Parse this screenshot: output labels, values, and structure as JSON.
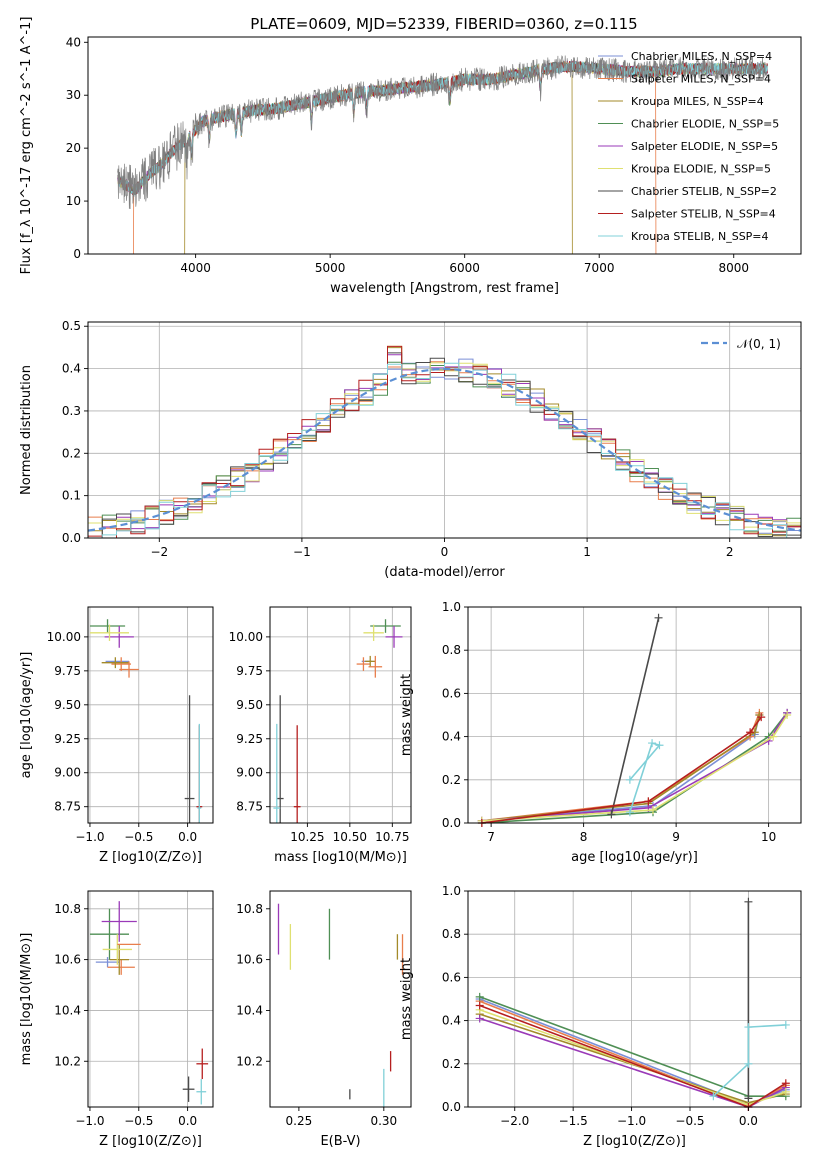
{
  "figure_title": "PLATE=0609, MJD=52339, FIBERID=0360, z=0.115",
  "colors": {
    "Chabrier MILES": "#7b8fd6",
    "Salpeter MILES": "#e87e4c",
    "Kroupa MILES": "#a38a2a",
    "Chabrier ELODIE": "#4f8f55",
    "Salpeter ELODIE": "#9a3ab8",
    "Kroupa ELODIE": "#dfe071",
    "Chabrier STELIB": "#4a4a4a",
    "Salpeter STELIB": "#b51f1f",
    "Kroupa STELIB": "#80d0d8",
    "normal": "#5b8fd4",
    "spectrum": "#7f7f7f"
  },
  "chart_data": [
    {
      "id": "spectrum",
      "type": "line",
      "title": "PLATE=0609, MJD=52339, FIBERID=0360, z=0.115",
      "xlabel": "wavelength [Angstrom, rest frame]",
      "ylabel": "Flux [f_λ 10^-17 erg cm^-2 s^-1 A^-1]",
      "xlim": [
        3200,
        8500
      ],
      "ylim": [
        0,
        41
      ],
      "xticks": [
        "4000",
        "5000",
        "6000",
        "7000",
        "8000"
      ],
      "yticks": [
        "0",
        "10",
        "20",
        "30",
        "40"
      ],
      "grid": false,
      "legend_position": "upper-right",
      "legend": [
        "Chabrier MILES, N_SSP=4",
        "Salpeter MILES, N_SSP=4",
        "Kroupa MILES, N_SSP=4",
        "Chabrier ELODIE, N_SSP=5",
        "Salpeter ELODIE, N_SSP=5",
        "Kroupa ELODIE, N_SSP=5",
        "Chabrier STELIB, N_SSP=2",
        "Salpeter STELIB, N_SSP=4",
        "Kroupa STELIB, N_SSP=4"
      ],
      "continuum": [
        [
          3420,
          14
        ],
        [
          3550,
          12
        ],
        [
          3650,
          15
        ],
        [
          3750,
          17
        ],
        [
          3850,
          20
        ],
        [
          3950,
          22
        ],
        [
          4050,
          25
        ],
        [
          4200,
          26
        ],
        [
          4400,
          27
        ],
        [
          4600,
          27.5
        ],
        [
          4800,
          28.5
        ],
        [
          5000,
          29.5
        ],
        [
          5200,
          30.5
        ],
        [
          5400,
          31
        ],
        [
          5600,
          31.5
        ],
        [
          5800,
          32
        ],
        [
          6000,
          33
        ],
        [
          6200,
          33
        ],
        [
          6400,
          34
        ],
        [
          6600,
          35
        ],
        [
          6800,
          35.5
        ],
        [
          7000,
          35
        ],
        [
          7200,
          34.5
        ],
        [
          7400,
          34.5
        ],
        [
          7600,
          35
        ],
        [
          7800,
          35
        ],
        [
          8000,
          35
        ],
        [
          8250,
          35
        ]
      ],
      "spectrum_range": [
        3420,
        8250
      ],
      "model_cutoffs": {
        "Kroupa MILES": [
          3920,
          6800
        ],
        "Salpeter MILES": [
          3540,
          7420
        ]
      }
    },
    {
      "id": "residuals",
      "type": "histogram",
      "xlabel": "(data-model)/error",
      "ylabel": "Normed distribution",
      "xlim": [
        -2.5,
        2.5
      ],
      "ylim": [
        0,
        0.51
      ],
      "xticks": [
        "−2",
        "−1",
        "0",
        "1",
        "2"
      ],
      "yticks": [
        "0.0",
        "0.1",
        "0.2",
        "0.3",
        "0.4",
        "0.5"
      ],
      "grid": true,
      "legend_position": "upper-right",
      "legend": [
        "𝒩(0, 1)"
      ],
      "bin_width": 0.1
    },
    {
      "id": "age_vs_Z",
      "type": "errorbar",
      "xlabel": "Z [log10(Z/Z⊙)]",
      "ylabel": "age [log10(age/yr)]",
      "xlim": [
        -1.02,
        0.26
      ],
      "ylim": [
        8.63,
        10.22
      ],
      "xticks": [
        "−1.0",
        "−0.5",
        "0.0"
      ],
      "xtick_values": [
        -1.0,
        -0.5,
        0.0
      ],
      "yticks": [
        "8.75",
        "9.00",
        "9.25",
        "9.50",
        "9.75",
        "10.00"
      ],
      "ytick_values": [
        8.75,
        9.0,
        9.25,
        9.5,
        9.75,
        10.0
      ],
      "grid": true,
      "points": [
        {
          "s": "Chabrier MILES",
          "x": -0.72,
          "y": 9.82,
          "xe": 0.12,
          "ye": 0.0
        },
        {
          "s": "Salpeter MILES",
          "x": -0.68,
          "y": 9.8,
          "xe": 0.1,
          "ye": 0.05
        },
        {
          "s": "Kroupa MILES",
          "x": -0.74,
          "y": 9.81,
          "xe": 0.14,
          "ye": 0.04
        },
        {
          "s": "Chabrier ELODIE",
          "x": -0.82,
          "y": 10.08,
          "xe": 0.18,
          "ye": 0.05
        },
        {
          "s": "Salpeter ELODIE",
          "x": -0.7,
          "y": 10.0,
          "xe": 0.15,
          "ye": 0.08
        },
        {
          "s": "Kroupa ELODIE",
          "x": -0.8,
          "y": 10.03,
          "xe": 0.2,
          "ye": 0.06
        },
        {
          "s": "Chabrier STELIB",
          "x": 0.02,
          "y": 8.81,
          "xe": 0.05,
          "ye": 0.76
        },
        {
          "s": "Salpeter STELIB",
          "x": 0.12,
          "y": 8.75,
          "xe": 0.03,
          "ye": 0.6
        },
        {
          "s": "Kroupa STELIB",
          "x": 0.12,
          "y": 8.74,
          "xe": 0.02,
          "ye": 0.62
        },
        {
          "s": "Salpeter MILES",
          "x": -0.6,
          "y": 9.76,
          "xe": 0.1,
          "ye": 0.06
        }
      ]
    },
    {
      "id": "age_vs_mass",
      "type": "errorbar",
      "xlabel": "mass [log10(M/M⊙)]",
      "ylabel": "",
      "xlim": [
        10.03,
        10.86
      ],
      "ylim": [
        8.63,
        10.22
      ],
      "xticks": [
        "10.25",
        "10.50",
        "10.75"
      ],
      "xtick_values": [
        10.25,
        10.5,
        10.75
      ],
      "yticks": [
        "8.75",
        "9.00",
        "9.25",
        "9.50",
        "9.75",
        "10.00"
      ],
      "ytick_values": [
        8.75,
        9.0,
        9.25,
        9.5,
        9.75,
        10.0
      ],
      "grid": true,
      "points": [
        {
          "s": "Chabrier MILES",
          "x": 10.6,
          "y": 9.82,
          "xe": 0.03,
          "ye": 0.0
        },
        {
          "s": "Salpeter MILES",
          "x": 10.58,
          "y": 9.8,
          "xe": 0.04,
          "ye": 0.05
        },
        {
          "s": "Kroupa MILES",
          "x": 10.62,
          "y": 9.82,
          "xe": 0.03,
          "ye": 0.04
        },
        {
          "s": "Chabrier ELODIE",
          "x": 10.71,
          "y": 10.08,
          "xe": 0.09,
          "ye": 0.05
        },
        {
          "s": "Salpeter ELODIE",
          "x": 10.76,
          "y": 10.0,
          "xe": 0.05,
          "ye": 0.08
        },
        {
          "s": "Kroupa ELODIE",
          "x": 10.64,
          "y": 10.03,
          "xe": 0.06,
          "ye": 0.06
        },
        {
          "s": "Chabrier STELIB",
          "x": 10.09,
          "y": 8.81,
          "xe": 0.02,
          "ye": 0.76
        },
        {
          "s": "Salpeter STELIB",
          "x": 10.19,
          "y": 8.75,
          "xe": 0.02,
          "ye": 0.6
        },
        {
          "s": "Kroupa STELIB",
          "x": 10.07,
          "y": 8.74,
          "xe": 0.02,
          "ye": 0.62
        },
        {
          "s": "Salpeter MILES",
          "x": 10.65,
          "y": 9.78,
          "xe": 0.04,
          "ye": 0.08
        }
      ]
    },
    {
      "id": "massweight_vs_age",
      "type": "line",
      "xlabel": "age [log10(age/yr)]",
      "ylabel": "mass weight",
      "xlim": [
        6.75,
        10.35
      ],
      "ylim": [
        0,
        1
      ],
      "xticks": [
        "7",
        "8",
        "9",
        "10"
      ],
      "xtick_values": [
        7,
        8,
        9,
        10
      ],
      "yticks": [
        "0.0",
        "0.2",
        "0.4",
        "0.6",
        "0.8",
        "1.0"
      ],
      "ytick_values": [
        0,
        0.2,
        0.4,
        0.6,
        0.8,
        1.0
      ],
      "grid": true,
      "series": [
        {
          "s": "Chabrier MILES",
          "pts": [
            [
              6.9,
              0.01
            ],
            [
              8.75,
              0.08
            ],
            [
              9.85,
              0.41
            ],
            [
              9.9,
              0.5
            ]
          ]
        },
        {
          "s": "Salpeter MILES",
          "pts": [
            [
              6.9,
              0.01
            ],
            [
              8.7,
              0.1
            ],
            [
              9.8,
              0.4
            ],
            [
              9.9,
              0.51
            ]
          ]
        },
        {
          "s": "Kroupa MILES",
          "pts": [
            [
              6.9,
              0.01
            ],
            [
              8.7,
              0.09
            ],
            [
              9.85,
              0.42
            ],
            [
              9.9,
              0.5
            ]
          ]
        },
        {
          "s": "Chabrier ELODIE",
          "pts": [
            [
              6.9,
              0.0
            ],
            [
              8.75,
              0.05
            ],
            [
              10.0,
              0.4
            ],
            [
              10.2,
              0.51
            ]
          ]
        },
        {
          "s": "Salpeter ELODIE",
          "pts": [
            [
              6.9,
              0.01
            ],
            [
              8.7,
              0.07
            ],
            [
              10.0,
              0.38
            ],
            [
              10.2,
              0.51
            ]
          ]
        },
        {
          "s": "Kroupa ELODIE",
          "pts": [
            [
              6.9,
              0.01
            ],
            [
              8.75,
              0.06
            ],
            [
              10.05,
              0.4
            ],
            [
              10.2,
              0.5
            ]
          ]
        },
        {
          "s": "Chabrier STELIB",
          "pts": [
            [
              8.3,
              0.04
            ],
            [
              8.81,
              0.95
            ]
          ]
        },
        {
          "s": "Salpeter STELIB",
          "pts": [
            [
              6.9,
              0.0
            ],
            [
              8.7,
              0.1
            ],
            [
              9.8,
              0.42
            ],
            [
              9.92,
              0.49
            ]
          ]
        },
        {
          "s": "Kroupa STELIB",
          "pts": [
            [
              8.5,
              0.05
            ],
            [
              8.74,
              0.37
            ],
            [
              8.82,
              0.36
            ],
            [
              8.5,
              0.2
            ]
          ]
        }
      ]
    },
    {
      "id": "mass_vs_Z",
      "type": "errorbar",
      "xlabel": "Z [log10(Z/Z⊙)]",
      "ylabel": "mass [log10(M/M⊙)]",
      "xlim": [
        -1.02,
        0.26
      ],
      "ylim": [
        10.02,
        10.87
      ],
      "xticks": [
        "−1.0",
        "−0.5",
        "0.0"
      ],
      "xtick_values": [
        -1.0,
        -0.5,
        0.0
      ],
      "yticks": [
        "10.2",
        "10.4",
        "10.6",
        "10.8"
      ],
      "ytick_values": [
        10.2,
        10.4,
        10.6,
        10.8
      ],
      "grid": true,
      "points": [
        {
          "s": "Chabrier MILES",
          "x": -0.82,
          "y": 10.59,
          "xe": 0.12,
          "ye": 0.02
        },
        {
          "s": "Salpeter MILES",
          "x": -0.68,
          "y": 10.57,
          "xe": 0.14,
          "ye": 0.03
        },
        {
          "s": "Kroupa MILES",
          "x": -0.7,
          "y": 10.6,
          "xe": 0.1,
          "ye": 0.06
        },
        {
          "s": "Chabrier ELODIE",
          "x": -0.8,
          "y": 10.7,
          "xe": 0.2,
          "ye": 0.1
        },
        {
          "s": "Salpeter ELODIE",
          "x": -0.7,
          "y": 10.75,
          "xe": 0.18,
          "ye": 0.08
        },
        {
          "s": "Kroupa ELODIE",
          "x": -0.72,
          "y": 10.64,
          "xe": 0.15,
          "ye": 0.06
        },
        {
          "s": "Chabrier STELIB",
          "x": 0.01,
          "y": 10.09,
          "xe": 0.06,
          "ye": 0.05
        },
        {
          "s": "Salpeter STELIB",
          "x": 0.15,
          "y": 10.19,
          "xe": 0.06,
          "ye": 0.06
        },
        {
          "s": "Kroupa STELIB",
          "x": 0.14,
          "y": 10.08,
          "xe": 0.05,
          "ye": 0.05
        },
        {
          "s": "Salpeter MILES",
          "x": -0.6,
          "y": 10.66,
          "xe": 0.12,
          "ye": 0.0
        }
      ]
    },
    {
      "id": "mass_vs_ebv",
      "type": "errorbar",
      "xlabel": "E(B-V)",
      "ylabel": "",
      "xlim": [
        0.233,
        0.316
      ],
      "ylim": [
        10.02,
        10.87
      ],
      "xticks": [
        "0.25",
        "0.30"
      ],
      "xtick_values": [
        0.25,
        0.3
      ],
      "yticks": [
        "10.2",
        "10.4",
        "10.6",
        "10.8"
      ],
      "ytick_values": [
        10.2,
        10.4,
        10.6,
        10.8
      ],
      "grid": false,
      "points": [
        {
          "s": "Salpeter ELODIE",
          "x": 0.238,
          "y": 10.72,
          "xe": 0.0,
          "ye": 0.1
        },
        {
          "s": "Kroupa ELODIE",
          "x": 0.245,
          "y": 10.65,
          "xe": 0.0,
          "ye": 0.09
        },
        {
          "s": "Chabrier ELODIE",
          "x": 0.268,
          "y": 10.7,
          "xe": 0.0,
          "ye": 0.1
        },
        {
          "s": "Chabrier STELIB",
          "x": 0.28,
          "y": 10.07,
          "xe": 0.0,
          "ye": 0.02
        },
        {
          "s": "Kroupa STELIB",
          "x": 0.3,
          "y": 10.09,
          "xe": 0.0,
          "ye": 0.08
        },
        {
          "s": "Salpeter STELIB",
          "x": 0.304,
          "y": 10.2,
          "xe": 0.0,
          "ye": 0.04
        },
        {
          "s": "Kroupa MILES",
          "x": 0.308,
          "y": 10.65,
          "xe": 0.0,
          "ye": 0.05
        },
        {
          "s": "Salpeter MILES",
          "x": 0.311,
          "y": 10.62,
          "xe": 0.0,
          "ye": 0.08
        }
      ]
    },
    {
      "id": "massweight_vs_Z",
      "type": "line",
      "xlabel": "Z [log10(Z/Z⊙)]",
      "ylabel": "mass weight",
      "xlim": [
        -2.4,
        0.45
      ],
      "ylim": [
        0,
        1
      ],
      "xticks": [
        "−2.0",
        "−1.5",
        "−1.0",
        "−0.5",
        "0.0"
      ],
      "xtick_values": [
        -2.0,
        -1.5,
        -1.0,
        -0.5,
        0.0
      ],
      "yticks": [
        "0.0",
        "0.2",
        "0.4",
        "0.6",
        "0.8",
        "1.0"
      ],
      "ytick_values": [
        0,
        0.2,
        0.4,
        0.6,
        0.8,
        1.0
      ],
      "grid": true,
      "series": [
        {
          "s": "Chabrier MILES",
          "pts": [
            [
              -2.3,
              0.5
            ],
            [
              0.0,
              0.01
            ],
            [
              0.32,
              0.08
            ]
          ]
        },
        {
          "s": "Salpeter MILES",
          "pts": [
            [
              -2.3,
              0.49
            ],
            [
              0.0,
              0.0
            ],
            [
              0.32,
              0.1
            ]
          ]
        },
        {
          "s": "Kroupa MILES",
          "pts": [
            [
              -2.3,
              0.43
            ],
            [
              0.0,
              0.02
            ],
            [
              0.32,
              0.06
            ]
          ]
        },
        {
          "s": "Chabrier ELODIE",
          "pts": [
            [
              -2.3,
              0.51
            ],
            [
              0.0,
              0.05
            ],
            [
              0.32,
              0.05
            ]
          ]
        },
        {
          "s": "Salpeter ELODIE",
          "pts": [
            [
              -2.3,
              0.41
            ],
            [
              0.0,
              0.0
            ],
            [
              0.32,
              0.09
            ]
          ]
        },
        {
          "s": "Kroupa ELODIE",
          "pts": [
            [
              -2.3,
              0.45
            ],
            [
              0.0,
              0.01
            ],
            [
              0.32,
              0.07
            ]
          ]
        },
        {
          "s": "Chabrier STELIB",
          "pts": [
            [
              0.0,
              0.95
            ],
            [
              0.0,
              0.04
            ]
          ]
        },
        {
          "s": "Salpeter STELIB",
          "pts": [
            [
              -2.3,
              0.47
            ],
            [
              0.0,
              0.0
            ],
            [
              0.32,
              0.11
            ]
          ]
        },
        {
          "s": "Kroupa STELIB",
          "pts": [
            [
              -0.3,
              0.05
            ],
            [
              0.0,
              0.2
            ],
            [
              0.0,
              0.37
            ],
            [
              0.32,
              0.38
            ]
          ]
        }
      ]
    }
  ]
}
